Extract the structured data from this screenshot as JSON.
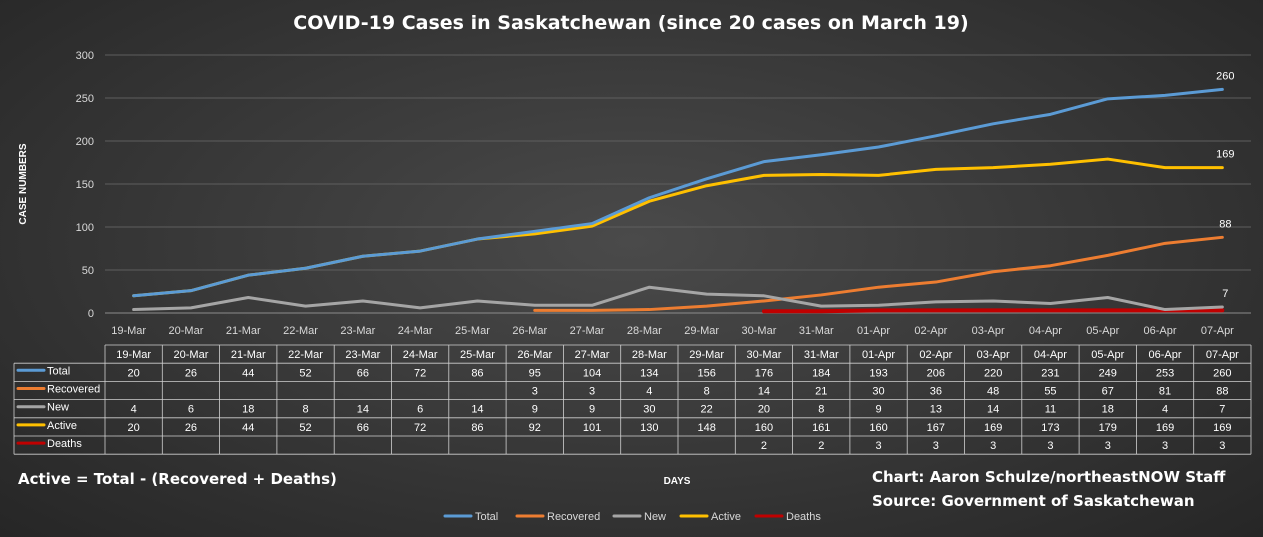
{
  "chart_data": {
    "type": "line",
    "title": "COVID-19 Cases in Saskatchewan (since 20 cases on March 19)",
    "xlabel": "DAYS",
    "ylabel": "CASE NUMBERS",
    "ylim": [
      0,
      300
    ],
    "yticks": [
      0,
      50,
      100,
      150,
      200,
      250,
      300
    ],
    "grid": true,
    "legend_position": "bottom",
    "categories": [
      "19-Mar",
      "20-Mar",
      "21-Mar",
      "22-Mar",
      "23-Mar",
      "24-Mar",
      "25-Mar",
      "26-Mar",
      "27-Mar",
      "28-Mar",
      "29-Mar",
      "30-Mar",
      "31-Mar",
      "01-Apr",
      "02-Apr",
      "03-Apr",
      "04-Apr",
      "05-Apr",
      "06-Apr",
      "07-Apr"
    ],
    "series": [
      {
        "name": "Total",
        "color": "#5b9bd5",
        "values": [
          20,
          26,
          44,
          52,
          66,
          72,
          86,
          95,
          104,
          134,
          156,
          176,
          184,
          193,
          206,
          220,
          231,
          249,
          253,
          260
        ]
      },
      {
        "name": "Recovered",
        "color": "#ed7d31",
        "values": [
          null,
          null,
          null,
          null,
          null,
          null,
          null,
          3,
          3,
          4,
          8,
          14,
          21,
          30,
          36,
          48,
          55,
          67,
          81,
          88
        ]
      },
      {
        "name": "New",
        "color": "#a5a5a5",
        "values": [
          4,
          6,
          18,
          8,
          14,
          6,
          14,
          9,
          9,
          30,
          22,
          20,
          8,
          9,
          13,
          14,
          11,
          18,
          4,
          7
        ]
      },
      {
        "name": "Active",
        "color": "#ffc000",
        "values": [
          20,
          26,
          44,
          52,
          66,
          72,
          86,
          92,
          101,
          130,
          148,
          160,
          161,
          160,
          167,
          169,
          173,
          179,
          169,
          169
        ]
      },
      {
        "name": "Deaths",
        "color": "#c00000",
        "values": [
          null,
          null,
          null,
          null,
          null,
          null,
          null,
          null,
          null,
          null,
          null,
          2,
          2,
          3,
          3,
          3,
          3,
          3,
          3,
          3
        ]
      }
    ],
    "end_labels": [
      "260",
      "169",
      "88",
      "7"
    ]
  },
  "footer": {
    "formula": "Active = Total - (Recovered + Deaths)",
    "credit": "Chart: Aaron Schulze/northeastNOW Staff",
    "source": "Source: Government of Saskatchewan"
  }
}
